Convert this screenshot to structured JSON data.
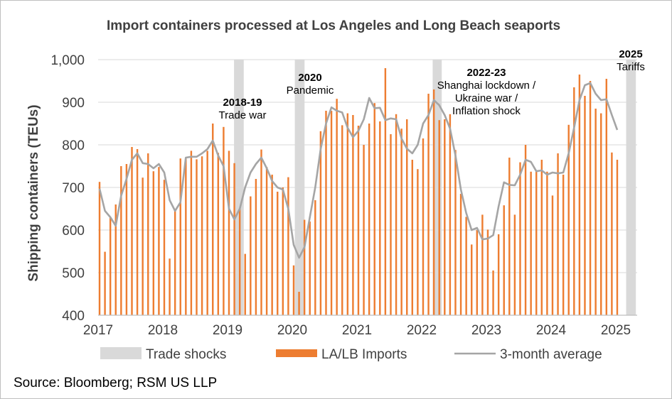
{
  "chart_data": {
    "type": "bar",
    "title": "Import containers processed at Los Angeles and Long Beach seaports",
    "ylabel": "Shipping containers (TEUs)",
    "xlabel": "",
    "ylim": [
      400,
      1000
    ],
    "yticks": [
      400,
      500,
      600,
      700,
      800,
      900,
      1000
    ],
    "ytick_labels": [
      "400",
      "500",
      "600",
      "700",
      "800",
      "900",
      "1,000"
    ],
    "x_start_year": 2017,
    "x_end_year": 2025.33,
    "xtick_labels": [
      "2017",
      "2018",
      "2019",
      "2020",
      "2021",
      "2022",
      "2023",
      "2024",
      "2025"
    ],
    "grid": true,
    "legend_position": "bottom",
    "colors": {
      "bars": "#ed7d31",
      "line": "#a5a5a5",
      "shock": "#d9d9d9",
      "grid": "#d9d9d9",
      "axis": "#bfbfbf",
      "text": "#404040"
    },
    "legend": [
      {
        "label": "Trade shocks",
        "kind": "band"
      },
      {
        "label": "LA/LB Imports",
        "kind": "bar"
      },
      {
        "label": "3-month average",
        "kind": "line"
      }
    ],
    "series": [
      {
        "name": "LA/LB Imports",
        "kind": "bar",
        "start": 2017,
        "values": [
          713,
          549,
          630,
          660,
          750,
          755,
          795,
          790,
          723,
          780,
          738,
          748,
          718,
          533,
          650,
          768,
          770,
          786,
          766,
          773,
          786,
          850,
          781,
          842,
          786,
          757,
          651,
          544,
          679,
          720,
          789,
          748,
          730,
          690,
          700,
          724,
          517,
          455,
          624,
          620,
          670,
          832,
          880,
          880,
          908,
          846,
          874,
          870,
          845,
          800,
          850,
          898,
          855,
          980,
          825,
          872,
          838,
          860,
          765,
          743,
          815,
          920,
          930,
          858,
          860,
          872,
          788,
          685,
          631,
          566,
          600,
          636,
          601,
          505,
          590,
          658,
          770,
          636,
          759,
          800,
          737,
          739,
          765,
          737,
          681,
          780,
          730,
          847,
          935,
          965,
          915,
          950,
          885,
          874,
          955,
          782,
          765
        ]
      },
      {
        "name": "3-month average",
        "kind": "line",
        "start": 2017,
        "values": [
          697,
          645,
          630,
          610,
          680,
          720,
          765,
          780,
          757,
          755,
          745,
          755,
          735,
          670,
          645,
          665,
          770,
          772,
          772,
          780,
          790,
          810,
          775,
          750,
          650,
          625,
          650,
          700,
          735,
          755,
          770,
          745,
          715,
          700,
          695,
          650,
          565,
          535,
          560,
          630,
          700,
          790,
          850,
          888,
          880,
          876,
          840,
          818,
          833,
          860,
          910,
          886,
          887,
          858,
          862,
          860,
          815,
          791,
          780,
          800,
          850,
          870,
          905,
          893,
          870,
          838,
          775,
          695,
          640,
          600,
          605,
          578,
          580,
          588,
          655,
          712,
          706,
          705,
          730,
          765,
          760,
          738,
          740,
          730,
          735,
          733,
          735,
          780,
          840,
          905,
          940,
          945,
          920,
          905,
          907,
          870,
          835
        ]
      }
    ],
    "shock_bands": [
      {
        "from": 2019.1,
        "to": 2019.25,
        "year_label": "2018-19",
        "desc": "Trade war"
      },
      {
        "from": 2020.04,
        "to": 2020.19,
        "year_label": "2020",
        "desc": "Pandemic"
      },
      {
        "from": 2022.17,
        "to": 2022.31,
        "year_label": "2022-23",
        "desc": "Shanghai lockdown / Ukraine war / Inflation shock"
      },
      {
        "from": 2025.16,
        "to": 2025.31,
        "year_label": "2025",
        "desc": "Tariffs"
      }
    ],
    "annotations": [
      {
        "year": "2018-19",
        "lines": [
          "Trade war"
        ]
      },
      {
        "year": "2020",
        "lines": [
          "Pandemic"
        ]
      },
      {
        "year": "2022-23",
        "lines": [
          "Shanghai lockdown /",
          "Ukraine war /",
          "Inflation shock"
        ]
      },
      {
        "year": "2025",
        "lines": [
          "Tariffs"
        ]
      }
    ]
  },
  "source": "Source: Bloomberg; RSM US LLP"
}
